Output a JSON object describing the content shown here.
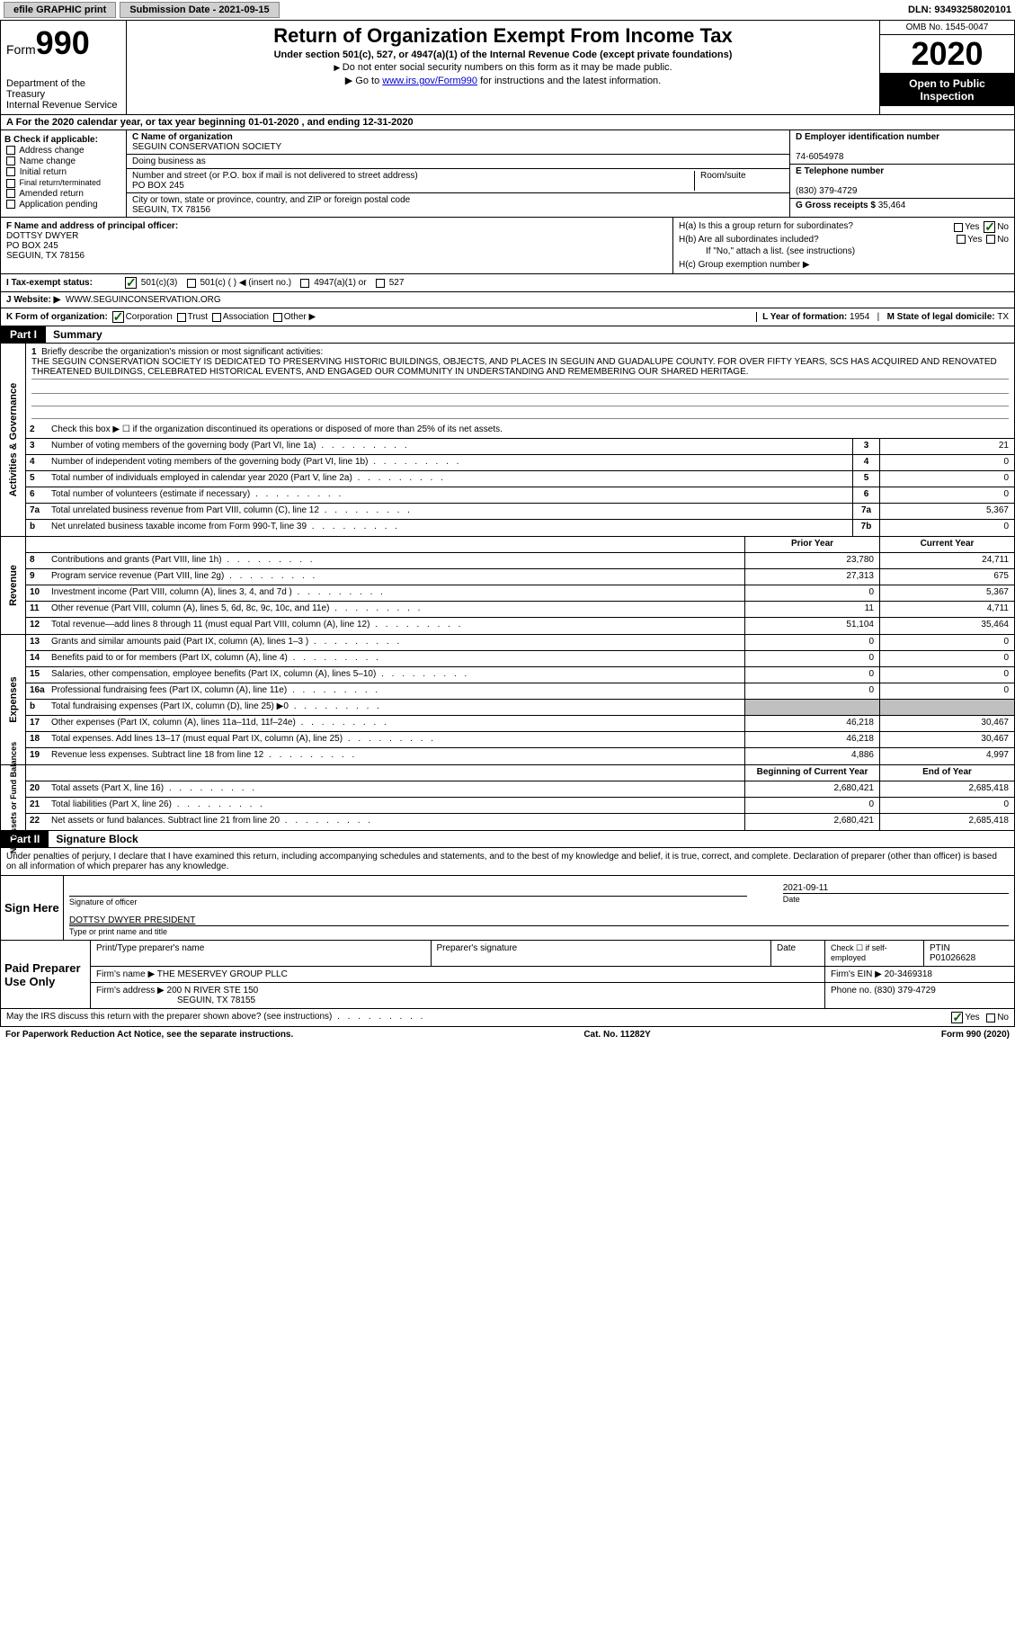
{
  "topbar": {
    "efile_btn": "efile GRAPHIC print",
    "submission": "Submission Date - 2021-09-15",
    "dln": "DLN: 93493258020101"
  },
  "header": {
    "form_label": "Form",
    "form_num": "990",
    "dept1": "Department of the Treasury",
    "dept2": "Internal Revenue Service",
    "title": "Return of Organization Exempt From Income Tax",
    "subtitle": "Under section 501(c), 527, or 4947(a)(1) of the Internal Revenue Code (except private foundations)",
    "note1": "Do not enter social security numbers on this form as it may be made public.",
    "note2_pre": "Go to ",
    "note2_link": "www.irs.gov/Form990",
    "note2_post": " for instructions and the latest information.",
    "omb": "OMB No. 1545-0047",
    "year": "2020",
    "open": "Open to Public Inspection"
  },
  "period": "For the 2020 calendar year, or tax year beginning 01-01-2020   , and ending 12-31-2020",
  "boxB": {
    "title": "B Check if applicable:",
    "opts": [
      "Address change",
      "Name change",
      "Initial return",
      "Final return/terminated",
      "Amended return",
      "Application pending"
    ]
  },
  "boxC": {
    "label_name": "C Name of organization",
    "name": "SEGUIN CONSERVATION SOCIETY",
    "dba_label": "Doing business as",
    "addr_label": "Number and street (or P.O. box if mail is not delivered to street address)",
    "room_label": "Room/suite",
    "addr": "PO BOX 245",
    "city_label": "City or town, state or province, country, and ZIP or foreign postal code",
    "city": "SEGUIN, TX  78156"
  },
  "boxD": {
    "label": "D Employer identification number",
    "val": "74-6054978"
  },
  "boxE": {
    "label": "E Telephone number",
    "val": "(830) 379-4729"
  },
  "boxG": {
    "label": "G Gross receipts $",
    "val": "35,464"
  },
  "boxF": {
    "label": "F Name and address of principal officer:",
    "l1": "DOTTSY DWYER",
    "l2": "PO BOX 245",
    "l3": "SEGUIN, TX  78156"
  },
  "boxH": {
    "a": "H(a)  Is this a group return for subordinates?",
    "b": "H(b)  Are all subordinates included?",
    "bnote": "If \"No,\" attach a list. (see instructions)",
    "c": "H(c)  Group exemption number ▶"
  },
  "yes": "Yes",
  "no": "No",
  "rowI": {
    "label": "I   Tax-exempt status:",
    "o1": "501(c)(3)",
    "o2": "501(c) (   ) ◀ (insert no.)",
    "o3": "4947(a)(1) or",
    "o4": "527"
  },
  "rowJ": {
    "label": "J   Website: ▶",
    "val": "WWW.SEGUINCONSERVATION.ORG"
  },
  "rowK": {
    "label": "K Form of organization:",
    "o1": "Corporation",
    "o2": "Trust",
    "o3": "Association",
    "o4": "Other ▶"
  },
  "rowL": {
    "label": "L Year of formation:",
    "val": "1954"
  },
  "rowM": {
    "label": "M State of legal domicile:",
    "val": "TX"
  },
  "part1": {
    "tag": "Part I",
    "title": "Summary"
  },
  "summary": {
    "l1_label": "Briefly describe the organization's mission or most significant activities:",
    "l1_text": "THE SEGUIN CONSERVATION SOCIETY IS DEDICATED TO PRESERVING HISTORIC BUILDINGS, OBJECTS, AND PLACES IN SEGUIN AND GUADALUPE COUNTY. FOR OVER FIFTY YEARS, SCS HAS ACQUIRED AND RENOVATED THREATENED BUILDINGS, CELEBRATED HISTORICAL EVENTS, AND ENGAGED OUR COMMUNITY IN UNDERSTANDING AND REMEMBERING OUR SHARED HERITAGE.",
    "l2": "Check this box ▶ ☐  if the organization discontinued its operations or disposed of more than 25% of its net assets.",
    "rows": [
      {
        "n": "3",
        "d": "Number of voting members of the governing body (Part VI, line 1a)",
        "box": "3",
        "v": "21"
      },
      {
        "n": "4",
        "d": "Number of independent voting members of the governing body (Part VI, line 1b)",
        "box": "4",
        "v": "0"
      },
      {
        "n": "5",
        "d": "Total number of individuals employed in calendar year 2020 (Part V, line 2a)",
        "box": "5",
        "v": "0"
      },
      {
        "n": "6",
        "d": "Total number of volunteers (estimate if necessary)",
        "box": "6",
        "v": "0"
      },
      {
        "n": "7a",
        "d": "Total unrelated business revenue from Part VIII, column (C), line 12",
        "box": "7a",
        "v": "5,367"
      },
      {
        "n": "b",
        "d": "Net unrelated business taxable income from Form 990-T, line 39",
        "box": "7b",
        "v": "0"
      }
    ]
  },
  "colhdrs": {
    "prior": "Prior Year",
    "current": "Current Year",
    "begin": "Beginning of Current Year",
    "end": "End of Year"
  },
  "revenue": [
    {
      "n": "8",
      "d": "Contributions and grants (Part VIII, line 1h)",
      "p": "23,780",
      "c": "24,711"
    },
    {
      "n": "9",
      "d": "Program service revenue (Part VIII, line 2g)",
      "p": "27,313",
      "c": "675"
    },
    {
      "n": "10",
      "d": "Investment income (Part VIII, column (A), lines 3, 4, and 7d )",
      "p": "0",
      "c": "5,367"
    },
    {
      "n": "11",
      "d": "Other revenue (Part VIII, column (A), lines 5, 6d, 8c, 9c, 10c, and 11e)",
      "p": "11",
      "c": "4,711"
    },
    {
      "n": "12",
      "d": "Total revenue—add lines 8 through 11 (must equal Part VIII, column (A), line 12)",
      "p": "51,104",
      "c": "35,464"
    }
  ],
  "expenses": [
    {
      "n": "13",
      "d": "Grants and similar amounts paid (Part IX, column (A), lines 1–3 )",
      "p": "0",
      "c": "0"
    },
    {
      "n": "14",
      "d": "Benefits paid to or for members (Part IX, column (A), line 4)",
      "p": "0",
      "c": "0"
    },
    {
      "n": "15",
      "d": "Salaries, other compensation, employee benefits (Part IX, column (A), lines 5–10)",
      "p": "0",
      "c": "0"
    },
    {
      "n": "16a",
      "d": "Professional fundraising fees (Part IX, column (A), line 11e)",
      "p": "0",
      "c": "0"
    },
    {
      "n": "b",
      "d": "Total fundraising expenses (Part IX, column (D), line 25) ▶0",
      "p": "",
      "c": "",
      "shaded": true
    },
    {
      "n": "17",
      "d": "Other expenses (Part IX, column (A), lines 11a–11d, 11f–24e)",
      "p": "46,218",
      "c": "30,467"
    },
    {
      "n": "18",
      "d": "Total expenses. Add lines 13–17 (must equal Part IX, column (A), line 25)",
      "p": "46,218",
      "c": "30,467"
    },
    {
      "n": "19",
      "d": "Revenue less expenses. Subtract line 18 from line 12",
      "p": "4,886",
      "c": "4,997"
    }
  ],
  "netassets": [
    {
      "n": "20",
      "d": "Total assets (Part X, line 16)",
      "p": "2,680,421",
      "c": "2,685,418"
    },
    {
      "n": "21",
      "d": "Total liabilities (Part X, line 26)",
      "p": "0",
      "c": "0"
    },
    {
      "n": "22",
      "d": "Net assets or fund balances. Subtract line 21 from line 20",
      "p": "2,680,421",
      "c": "2,685,418"
    }
  ],
  "vlabels": {
    "ag": "Activities & Governance",
    "rev": "Revenue",
    "exp": "Expenses",
    "na": "Net Assets or Fund Balances"
  },
  "part2": {
    "tag": "Part II",
    "title": "Signature Block"
  },
  "sig": {
    "perjury": "Under penalties of perjury, I declare that I have examined this return, including accompanying schedules and statements, and to the best of my knowledge and belief, it is true, correct, and complete. Declaration of preparer (other than officer) is based on all information of which preparer has any knowledge.",
    "sign_here": "Sign Here",
    "sig_off": "Signature of officer",
    "date_label": "Date",
    "date_val": "2021-09-11",
    "name_val": "DOTTSY DWYER  PRESIDENT",
    "name_label": "Type or print name and title"
  },
  "paid": {
    "label": "Paid Preparer Use Only",
    "h1": "Print/Type preparer's name",
    "h2": "Preparer's signature",
    "h3": "Date",
    "h4_a": "Check ☐ if self-employed",
    "h4_b": "PTIN",
    "ptin": "P01026628",
    "firm_name_l": "Firm's name   ▶",
    "firm_name": "THE MESERVEY GROUP PLLC",
    "firm_ein_l": "Firm's EIN ▶",
    "firm_ein": "20-3469318",
    "firm_addr_l": "Firm's address ▶",
    "firm_addr1": "200 N RIVER STE 150",
    "firm_addr2": "SEGUIN, TX  78155",
    "phone_l": "Phone no.",
    "phone": "(830) 379-4729"
  },
  "discuss": "May the IRS discuss this return with the preparer shown above? (see instructions)",
  "footer": {
    "l": "For Paperwork Reduction Act Notice, see the separate instructions.",
    "m": "Cat. No. 11282Y",
    "r": "Form 990 (2020)"
  }
}
